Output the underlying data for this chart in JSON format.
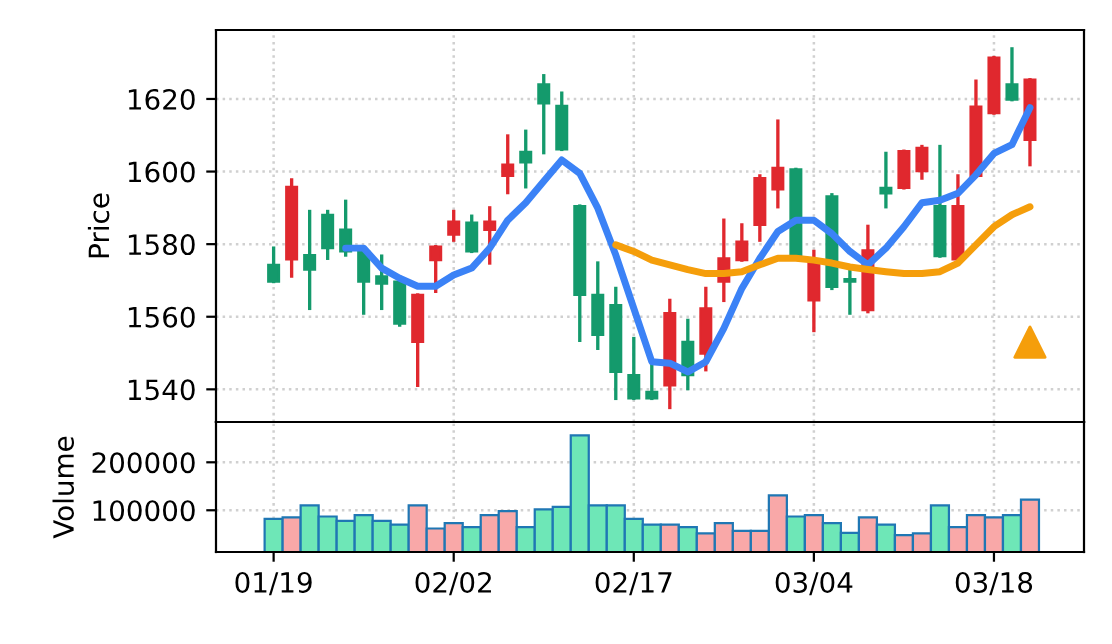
{
  "chart_data": [
    {
      "type": "candlestick",
      "ylabel": "Price",
      "ylim": [
        1531,
        1639
      ],
      "yticks": [
        1540,
        1560,
        1580,
        1600,
        1620
      ],
      "grid": true,
      "tick_labels": "y",
      "ohlc": [
        [
          1574.3,
          1578.9,
          1569.7,
          1569.7
        ],
        [
          1575.8,
          1597.7,
          1571.2,
          1595.8
        ],
        [
          1577,
          1589,
          1562.3,
          1573
        ],
        [
          1588.1,
          1589,
          1576.1,
          1578.9
        ],
        [
          1584,
          1591.8,
          1577,
          1578
        ],
        [
          1578,
          1578.9,
          1561,
          1569.7
        ],
        [
          1571.1,
          1576.7,
          1562.3,
          1569.1
        ],
        [
          1569.7,
          1570.6,
          1557.7,
          1558.1
        ],
        [
          1553.1,
          1566,
          1541.1,
          1566
        ],
        [
          1575.6,
          1579.3,
          1567,
          1579.3
        ],
        [
          1582.6,
          1589,
          1581.1,
          1586.2
        ],
        [
          1585.9,
          1587.7,
          1578,
          1578
        ],
        [
          1583.9,
          1590,
          1574.8,
          1586.2
        ],
        [
          1598.8,
          1609.8,
          1594.2,
          1601.9
        ],
        [
          1605.4,
          1611.1,
          1595.8,
          1602.5
        ],
        [
          1624,
          1626.4,
          1605.2,
          1618.8
        ],
        [
          1618.1,
          1621.6,
          1606.1,
          1606.1
        ],
        [
          1590.5,
          1590.5,
          1553.5,
          1566
        ],
        [
          1566,
          1574.8,
          1551.3,
          1555
        ],
        [
          1563.2,
          1567.8,
          1537.5,
          1544.8
        ],
        [
          1543.9,
          1554,
          1537.5,
          1537.5
        ],
        [
          1539.3,
          1547.6,
          1537.5,
          1537.5
        ],
        [
          1541.1,
          1564.5,
          1535,
          1561
        ],
        [
          1553.1,
          1559,
          1540.2,
          1543.9
        ],
        [
          1549.8,
          1567.8,
          1545.4,
          1562.3
        ],
        [
          1569.7,
          1586.6,
          1564.5,
          1576.1
        ],
        [
          1575.6,
          1585.3,
          1575.6,
          1580.7
        ],
        [
          1585.3,
          1598.8,
          1581.1,
          1598.2
        ],
        [
          1595.1,
          1613.9,
          1590.3,
          1601
        ],
        [
          1600.6,
          1600.6,
          1577,
          1577
        ],
        [
          1564.5,
          1578,
          1556.2,
          1574.8
        ],
        [
          1593.2,
          1593.6,
          1567.8,
          1568.2
        ],
        [
          1570.4,
          1573,
          1561,
          1569.7
        ],
        [
          1561.8,
          1584.9,
          1561.4,
          1578.3
        ],
        [
          1595.5,
          1605,
          1590.3,
          1594
        ],
        [
          1595.5,
          1605.6,
          1595.5,
          1605.6
        ],
        [
          1600.1,
          1606.9,
          1598.2,
          1606.5
        ],
        [
          1590.5,
          1606.9,
          1576.7,
          1576.7
        ],
        [
          1575.8,
          1598.8,
          1575.6,
          1590.5
        ],
        [
          1598.8,
          1624.9,
          1598.8,
          1617.9
        ],
        [
          1616.1,
          1631.4,
          1616.1,
          1631.4
        ],
        [
          1624,
          1633.8,
          1619.8,
          1619.8
        ],
        [
          1608.7,
          1625.3,
          1601.9,
          1625.3
        ]
      ],
      "colors": [
        "#149a6c",
        "#e0282e",
        "#149a6c",
        "#149a6c",
        "#149a6c",
        "#149a6c",
        "#149a6c",
        "#149a6c",
        "#e0282e",
        "#e0282e",
        "#e0282e",
        "#149a6c",
        "#e0282e",
        "#e0282e",
        "#149a6c",
        "#149a6c",
        "#149a6c",
        "#149a6c",
        "#149a6c",
        "#149a6c",
        "#149a6c",
        "#149a6c",
        "#e0282e",
        "#149a6c",
        "#e0282e",
        "#e0282e",
        "#e0282e",
        "#e0282e",
        "#e0282e",
        "#149a6c",
        "#e0282e",
        "#149a6c",
        "#149a6c",
        "#e0282e",
        "#149a6c",
        "#e0282e",
        "#e0282e",
        "#149a6c",
        "#e0282e",
        "#e0282e",
        "#e0282e",
        "#149a6c",
        "#e0282e"
      ],
      "series": [
        {
          "type": "line",
          "color": "#3b82f6",
          "values": [
            null,
            null,
            null,
            null,
            1578.9,
            1578.9,
            1573.4,
            1570.6,
            1568.4,
            1568.4,
            1571.5,
            1573.4,
            1578.9,
            1586.6,
            1591.4,
            1597.3,
            1603.2,
            1599.5,
            1589.9,
            1577,
            1562.3,
            1547.6,
            1547.2,
            1544.8,
            1547.6,
            1556.8,
            1567.8,
            1576.1,
            1583.5,
            1586.6,
            1586.6,
            1582.9,
            1578,
            1574.3,
            1578.9,
            1584.8,
            1591.4,
            1592.1,
            1594,
            1599.1,
            1605,
            1607.4,
            1617.6
          ]
        },
        {
          "type": "line",
          "color": "#f59e0b",
          "values": [
            null,
            null,
            null,
            null,
            null,
            null,
            null,
            null,
            null,
            null,
            null,
            null,
            null,
            null,
            null,
            null,
            null,
            null,
            null,
            1579.8,
            1578,
            1575.6,
            1574.3,
            1573,
            1571.9,
            1571.9,
            1572.4,
            1574.3,
            1576.1,
            1576.1,
            1575.6,
            1574.8,
            1573.7,
            1573,
            1572.4,
            1571.9,
            1571.9,
            1572.4,
            1574.8,
            1579.8,
            1584.8,
            1588.1,
            1590.3
          ]
        },
        {
          "type": "scatter",
          "color": "#f59e0b",
          "marker": "triangle",
          "values": [
            null,
            null,
            null,
            null,
            null,
            null,
            null,
            null,
            null,
            null,
            null,
            null,
            null,
            null,
            null,
            null,
            null,
            null,
            null,
            null,
            null,
            null,
            null,
            null,
            null,
            null,
            null,
            null,
            null,
            null,
            null,
            null,
            null,
            null,
            null,
            null,
            null,
            null,
            null,
            null,
            null,
            null,
            1553
          ]
        }
      ]
    },
    {
      "type": "bar",
      "ylabel": "Volume",
      "ylim": [
        13000,
        284000
      ],
      "yticks": [
        100000,
        200000
      ],
      "grid": true,
      "categories": [
        "01/19",
        null,
        null,
        null,
        null,
        null,
        null,
        null,
        null,
        null,
        "02/02",
        null,
        null,
        null,
        null,
        null,
        null,
        null,
        null,
        null,
        "02/17",
        null,
        null,
        null,
        null,
        null,
        null,
        null,
        null,
        null,
        "03/04",
        null,
        null,
        null,
        null,
        null,
        null,
        null,
        null,
        null,
        "03/18",
        null,
        null
      ],
      "values": [
        82000,
        85000,
        110000,
        87000,
        78000,
        90000,
        78000,
        70000,
        110000,
        62000,
        73000,
        65000,
        90000,
        98000,
        65000,
        102000,
        107000,
        256000,
        110000,
        110000,
        82000,
        70000,
        70000,
        65000,
        52000,
        73000,
        57000,
        57000,
        131000,
        87000,
        90000,
        73000,
        53000,
        85000,
        70000,
        48000,
        52000,
        110000,
        65000,
        90000,
        85000,
        90000,
        122000
      ],
      "colors": [
        "#6ee7b7",
        "#f9a8a8",
        "#6ee7b7",
        "#6ee7b7",
        "#6ee7b7",
        "#6ee7b7",
        "#6ee7b7",
        "#6ee7b7",
        "#f9a8a8",
        "#f9a8a8",
        "#f9a8a8",
        "#6ee7b7",
        "#f9a8a8",
        "#f9a8a8",
        "#6ee7b7",
        "#6ee7b7",
        "#6ee7b7",
        "#6ee7b7",
        "#6ee7b7",
        "#6ee7b7",
        "#6ee7b7",
        "#6ee7b7",
        "#f9a8a8",
        "#6ee7b7",
        "#f9a8a8",
        "#f9a8a8",
        "#f9a8a8",
        "#f9a8a8",
        "#f9a8a8",
        "#6ee7b7",
        "#f9a8a8",
        "#6ee7b7",
        "#6ee7b7",
        "#f9a8a8",
        "#6ee7b7",
        "#f9a8a8",
        "#f9a8a8",
        "#6ee7b7",
        "#f9a8a8",
        "#f9a8a8",
        "#f9a8a8",
        "#6ee7b7",
        "#f9a8a8"
      ]
    }
  ]
}
